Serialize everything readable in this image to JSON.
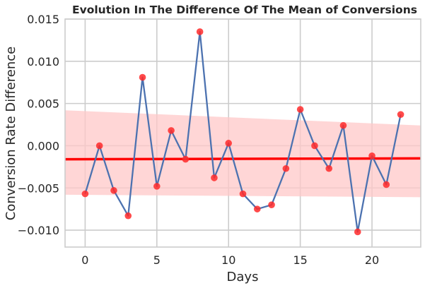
{
  "chart_data": {
    "type": "line",
    "title": "Evolution In The Difference Of The Mean of Conversions",
    "xlabel": "Days",
    "ylabel": "Conversion Rate Difference",
    "xlim": [
      -1.4,
      23.4
    ],
    "ylim": [
      -0.012,
      0.015
    ],
    "xticks": [
      0,
      5,
      10,
      15,
      20
    ],
    "xtick_labels": [
      "0",
      "5",
      "10",
      "15",
      "20"
    ],
    "yticks": [
      -0.01,
      -0.005,
      0.0,
      0.005,
      0.01,
      0.015
    ],
    "ytick_labels": [
      "−0.010",
      "−0.005",
      "0.000",
      "0.005",
      "0.010",
      "0.015"
    ],
    "grid": true,
    "series": [
      {
        "x": [
          0,
          1,
          2,
          3,
          4,
          5,
          6,
          7,
          8,
          9,
          10,
          11,
          12,
          13,
          14,
          15,
          16,
          17,
          18,
          19,
          20,
          21,
          22
        ],
        "y": [
          -0.0057,
          0.0,
          -0.0053,
          -0.0083,
          0.0081,
          -0.0048,
          0.0018,
          -0.0016,
          0.0135,
          -0.0038,
          0.0003,
          -0.0057,
          -0.0075,
          -0.007,
          -0.0027,
          0.0043,
          0.0,
          -0.0027,
          0.0024,
          -0.0102,
          -0.0012,
          -0.0046,
          0.0037
        ],
        "line_color": "#4c72b0",
        "marker_color": "#ff2a2a"
      }
    ],
    "regression": {
      "x_range": [
        -1.4,
        23.4
      ],
      "y_start": -0.0016,
      "y_end": -0.0015,
      "color": "#ff0000",
      "ci_lower_start": -0.0058,
      "ci_upper_start": 0.0042,
      "ci_lower_end": -0.0061,
      "ci_upper_end": 0.0024,
      "ci_color": "#ffc8c8"
    }
  }
}
